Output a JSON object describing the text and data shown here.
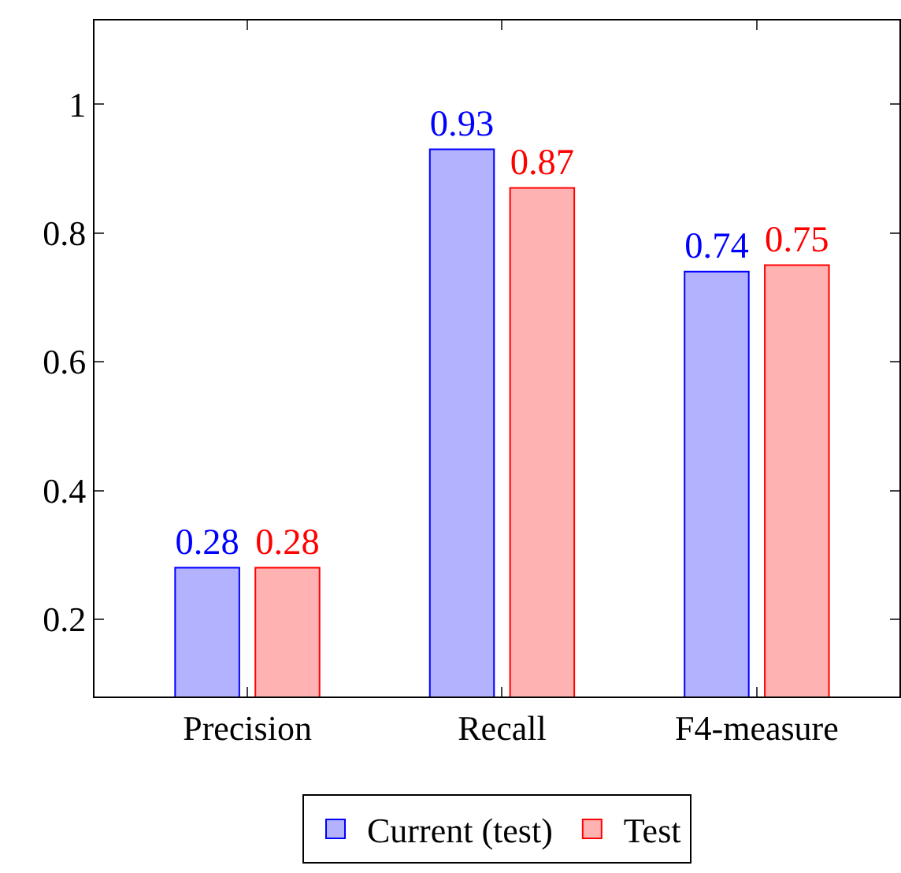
{
  "chart_data": {
    "type": "bar",
    "categories": [
      "Precision",
      "Recall",
      "F4-measure"
    ],
    "series": [
      {
        "name": "Current (test)",
        "color": "#0000ff",
        "values": [
          0.28,
          0.93,
          0.74
        ]
      },
      {
        "name": "Test",
        "color": "#ff0000",
        "values": [
          0.28,
          0.87,
          0.75
        ]
      }
    ],
    "ylim": [
      0.08,
      1.13
    ],
    "yticks": [
      0.2,
      0.4,
      0.6,
      0.8,
      1
    ],
    "data_labels": true,
    "legend": "bottom"
  }
}
